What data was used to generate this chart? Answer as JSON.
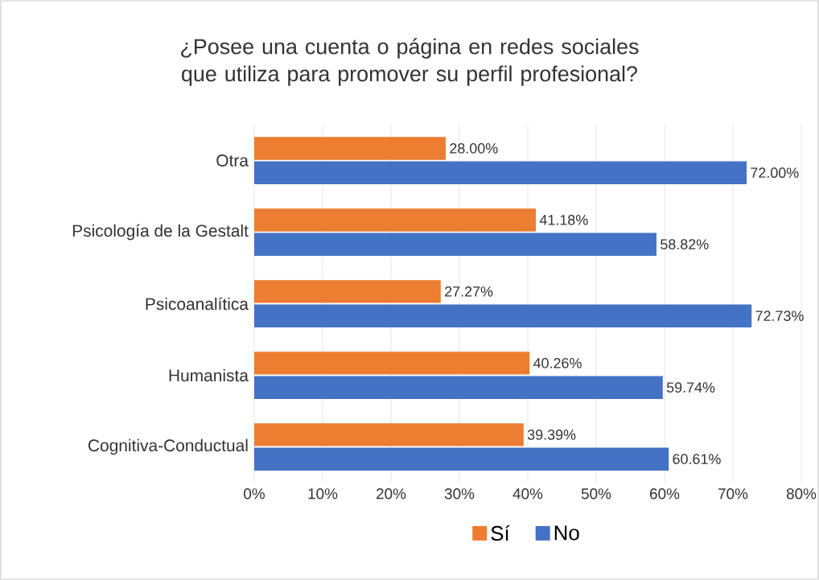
{
  "chart_data": {
    "type": "bar",
    "orientation": "horizontal",
    "title": "¿Posee una cuenta o página en redes sociales que utiliza para promover su perfil profesional?",
    "categories": [
      "Otra",
      "Psicología de la Gestalt",
      "Psicoanalítica",
      "Humanista",
      "Cognitiva-Conductual"
    ],
    "series": [
      {
        "name": "Sí",
        "color": "#ed7d31",
        "values": [
          28.0,
          41.18,
          27.27,
          40.26,
          39.39
        ],
        "value_labels": [
          "28.00%",
          "41.18%",
          "27.27%",
          "40.26%",
          "39.39%"
        ]
      },
      {
        "name": "No",
        "color": "#4472c4",
        "values": [
          72.0,
          58.82,
          72.73,
          59.74,
          60.61
        ],
        "value_labels": [
          "72.00%",
          "58.82%",
          "72.73%",
          "59.74%",
          "60.61%"
        ]
      }
    ],
    "xlim": [
      0,
      80
    ],
    "xticks": [
      {
        "value": 0,
        "label": "0%"
      },
      {
        "value": 10,
        "label": "10%"
      },
      {
        "value": 20,
        "label": "20%"
      },
      {
        "value": 30,
        "label": "30%"
      },
      {
        "value": 40,
        "label": "40%"
      },
      {
        "value": 50,
        "label": "50%"
      },
      {
        "value": 60,
        "label": "60%"
      },
      {
        "value": 70,
        "label": "70%"
      },
      {
        "value": 80,
        "label": "80%"
      }
    ],
    "grid": "x",
    "legend": "bottom"
  }
}
